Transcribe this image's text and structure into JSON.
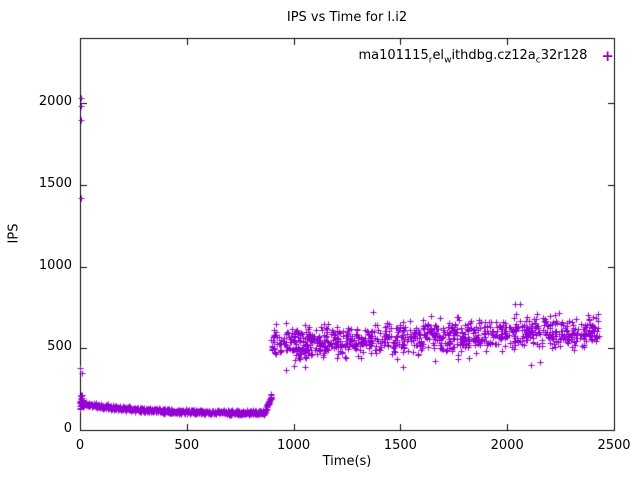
{
  "chart_data": {
    "type": "scatter",
    "title": "IPS vs Time for l.i2",
    "xlabel": "Time(s)",
    "ylabel": "IPS",
    "xlim": [
      0,
      2500
    ],
    "ylim": [
      0,
      2400
    ],
    "xticks": [
      0,
      500,
      1000,
      1500,
      2000,
      2500
    ],
    "yticks": [
      0,
      500,
      1000,
      1500,
      2000
    ],
    "grid": false,
    "legend_text": "ma101115_rel_withdbg.cz12a_c32r128",
    "legend_parts": [
      {
        "text": "ma101115"
      },
      {
        "sub": "r"
      },
      {
        "text": "el"
      },
      {
        "sub": "w"
      },
      {
        "text": "ithdbg.cz12a"
      },
      {
        "sub": "c"
      },
      {
        "text": "32r128"
      }
    ],
    "legend_position": "top-right",
    "legend_marker": "plus",
    "marker": "plus",
    "color": "#9400D3",
    "seed": 1337,
    "series": [
      {
        "name": "ma101115_rel_withdbg.cz12a_c32r128",
        "segments": {
          "phase1_low_band": {
            "x_range": [
              0,
              862
            ],
            "y_start": 165,
            "y_floor": 105,
            "decay": 250,
            "noise": 14,
            "count": 700
          },
          "startup_scatter": {
            "x_range": [
              0,
              12
            ],
            "y_range": [
              125,
              215
            ],
            "count": 25
          },
          "startup_spikes": [
            [
              3,
              2035
            ],
            [
              5,
              1985
            ],
            [
              4,
              1895
            ],
            [
              6,
              1420
            ],
            [
              2,
              380
            ],
            [
              8,
              350
            ]
          ],
          "transition": {
            "x_range": [
              862,
              897
            ],
            "y_range": [
              100,
              215
            ],
            "count": 40
          },
          "phase2_high_band": {
            "x_range": [
              895,
              2430
            ],
            "y_start": 530,
            "y_end": 610,
            "noise": 90,
            "count": 950,
            "outlier_rate": 0.04,
            "y_clamp": [
              365,
              770
            ]
          }
        }
      }
    ]
  }
}
